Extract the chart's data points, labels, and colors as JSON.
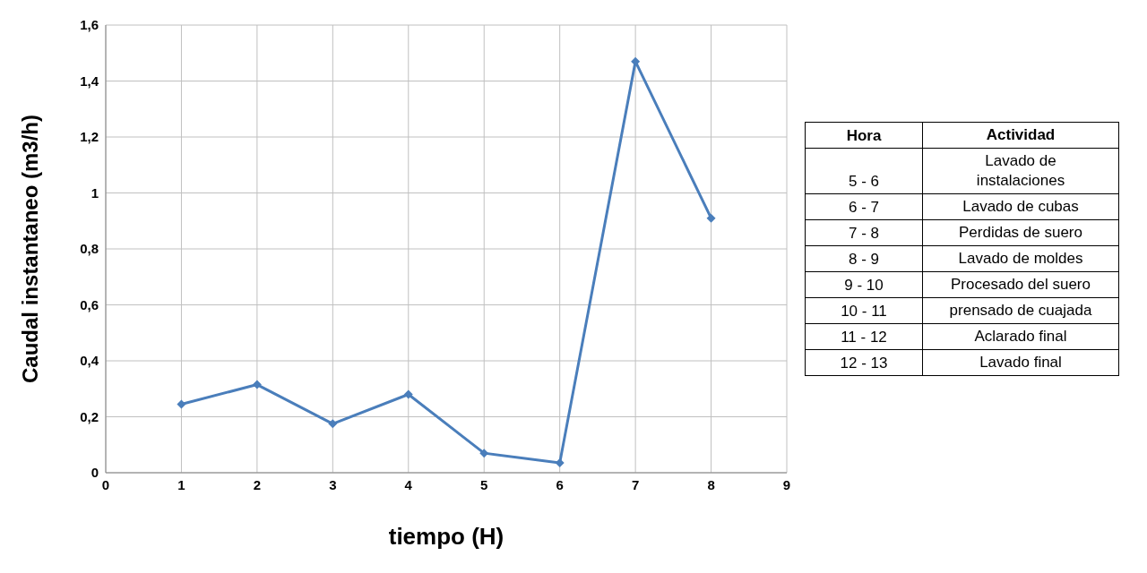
{
  "chart_data": [
    {
      "type": "line",
      "xlabel": "tiempo (H)",
      "ylabel": "Caudal instantaneo (m3/h)",
      "x": [
        1,
        2,
        3,
        4,
        5,
        6,
        7,
        8
      ],
      "series": [
        {
          "color": "#4a7ebb",
          "values": [
            0.245,
            0.315,
            0.175,
            0.28,
            0.07,
            0.035,
            1.47,
            0.91
          ]
        }
      ],
      "xlim": [
        0,
        9
      ],
      "xticks": [
        0,
        1,
        2,
        3,
        4,
        5,
        6,
        7,
        8,
        9
      ],
      "ylim": [
        0,
        1.6
      ],
      "yticks": [
        0,
        {
          "value": 0.2,
          "label": "0,2"
        },
        {
          "value": 0.4,
          "label": "0,4"
        },
        {
          "value": 0.6,
          "label": "0,6"
        },
        {
          "value": 0.8,
          "label": "0,8"
        },
        1,
        {
          "value": 1.2,
          "label": "1,2"
        },
        {
          "value": 1.4,
          "label": "1,4"
        },
        {
          "value": 1.6,
          "label": "1,6"
        }
      ],
      "grid": true,
      "marker": "diamond",
      "line_style": "solid"
    },
    {
      "type": "other",
      "annotations": [
        "Hora",
        "Actividad",
        "5 - 6",
        "Lavado de instalaciones",
        "6 - 7",
        "Lavado de cubas",
        "7 - 8",
        "Perdidas de suero",
        "8 - 9",
        "Lavado de moldes",
        "9 - 10",
        "Procesado del suero",
        "10 - 11",
        "prensado de cuajada",
        "11 - 12",
        "Aclarado final",
        "12 - 13",
        "Lavado final"
      ]
    }
  ]
}
